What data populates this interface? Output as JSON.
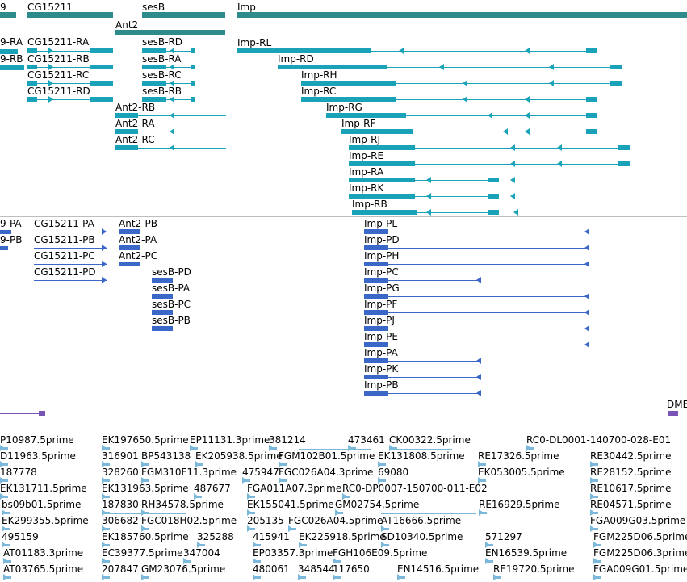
{
  "colors": {
    "gene": "#2e8b8b",
    "transcript": "#1aa3b8",
    "protein": "#3a67c8",
    "est": "#7ab8dc",
    "separator": "#bdbdbd",
    "misc": "#7a55b8"
  },
  "gene_track": {
    "labels": [
      "9",
      "CG15211",
      "sesB",
      "Imp",
      "Ant2"
    ]
  },
  "transcript_track": {
    "labels": [
      "9-RA",
      "9-RB",
      "CG15211-RA",
      "CG15211-RB",
      "CG15211-RC",
      "CG15211-RD",
      "sesB-RD",
      "sesB-RA",
      "sesB-RC",
      "sesB-RB",
      "Ant2-RB",
      "Ant2-RA",
      "Ant2-RC",
      "Imp-RL",
      "Imp-RD",
      "Imp-RH",
      "Imp-RC",
      "Imp-RG",
      "Imp-RF",
      "Imp-RJ",
      "Imp-RE",
      "Imp-RA",
      "Imp-RK",
      "Imp-RB"
    ]
  },
  "protein_track": {
    "labels": [
      "9-PA",
      "9-PB",
      "CG15211-PA",
      "CG15211-PB",
      "CG15211-PC",
      "CG15211-PD",
      "Ant2-PB",
      "Ant2-PA",
      "Ant2-PC",
      "sesB-PD",
      "sesB-PA",
      "sesB-PC",
      "sesB-PB",
      "Imp-PL",
      "Imp-PD",
      "Imp-PH",
      "Imp-PC",
      "Imp-PG",
      "Imp-PF",
      "Imp-PJ",
      "Imp-PE",
      "Imp-PA",
      "Imp-PK",
      "Imp-PB"
    ]
  },
  "misc_track": {
    "labels": [
      "DME"
    ]
  },
  "est_track": {
    "labels": [
      "P10987.5prime",
      "EK197650.5prime",
      "EP11131.3prime",
      "381214",
      "473461",
      "CK00322.5prime",
      "RC0-DL0001-140700-028-E01",
      "D11963.5prime",
      "316901",
      "BP543138",
      "EK205938.5prime",
      "FGM102B01.5prime",
      "EK131808.5prime",
      "RE17326.5prime",
      "RE30442.5prime",
      "187778",
      "328260",
      "FGM310F11.3prime",
      "475947",
      "FGC026A04.3prime",
      "69080",
      "EK053005.5prime",
      "RE28152.5prime",
      "EK131711.5prime",
      "EK131963.5prime",
      "487677",
      "FGA011A07.3prime",
      "RC0-DP0007-150700-011-E02",
      "RE10617.5prime",
      "bs09b01.5prime",
      "187830",
      "RH34578.5prime",
      "EK155041.5prime",
      "GM02754.5prime",
      "RE16929.5prime",
      "RE04571.5prime",
      "EK299355.5prime",
      "306682",
      "FGC018H02.5prime",
      "205135",
      "FGC026A04.5prime",
      "AT16666.5prime",
      "FGA009G03.5prime",
      "495159",
      "EK185760.5prime",
      "325288",
      "415941",
      "EK225918.5prime",
      "SD10340.5prime",
      "571297",
      "FGM225D06.5prime",
      "AT01183.3prime",
      "EC39377.5prime",
      "347004",
      "EP03357.3prime",
      "FGH106E09.5prime",
      "EN16539.5prime",
      "FGM225D06.3prime",
      "AT03765.5prime",
      "207847",
      "GM23076.5prime",
      "480061",
      "348544",
      "117650",
      "EN14516.5prime",
      "RE19720.5prime",
      "FGA009G01.5prime"
    ]
  }
}
